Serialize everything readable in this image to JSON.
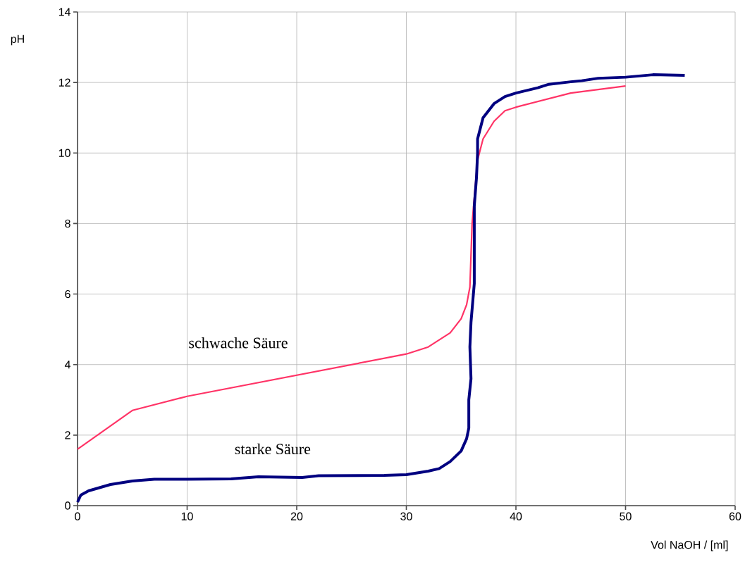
{
  "chart_data": {
    "type": "line",
    "xlabel": "Vol NaOH / [ml]",
    "ylabel": "pH",
    "xlim": [
      0,
      60
    ],
    "xticks": [
      0,
      10,
      20,
      30,
      40,
      50,
      60
    ],
    "ylim": [
      0,
      14
    ],
    "yticks": [
      0,
      2,
      4,
      6,
      8,
      10,
      12,
      14
    ],
    "grid": true,
    "marker": "none",
    "line_style": "solid",
    "series": [
      {
        "name": "schwache Säure",
        "color": "#ff3366",
        "x": [
          0,
          5,
          10,
          30,
          32,
          34,
          35,
          35.5,
          35.8,
          36,
          36.5,
          37,
          38,
          39,
          40,
          45,
          50
        ],
        "values": [
          1.6,
          2.7,
          3.1,
          4.3,
          4.5,
          4.9,
          5.3,
          5.7,
          6.2,
          8,
          9.8,
          10.4,
          10.9,
          11.2,
          11.3,
          11.7,
          11.9
        ]
      },
      {
        "name": "starke Säure",
        "color": "#000080",
        "x": [
          0,
          0.3,
          1,
          3,
          5,
          7,
          10,
          14,
          16.5,
          20.5,
          22,
          28,
          30,
          32,
          33,
          34,
          35,
          35.5,
          35.7,
          35.7,
          35.9,
          35.8,
          35.9,
          36.2,
          36.2,
          36.4,
          36.5,
          36.5,
          37,
          38,
          39,
          40,
          42,
          43,
          45,
          46,
          47.5,
          50,
          52.5,
          55.4
        ],
        "values": [
          0.1,
          0.3,
          0.42,
          0.6,
          0.7,
          0.75,
          0.75,
          0.76,
          0.82,
          0.8,
          0.85,
          0.86,
          0.88,
          0.98,
          1.05,
          1.25,
          1.55,
          1.9,
          2.2,
          3,
          3.6,
          4.5,
          5.2,
          6.3,
          8.5,
          9.3,
          10,
          10.4,
          11,
          11.4,
          11.6,
          11.7,
          11.85,
          11.95,
          12.02,
          12.05,
          12.12,
          12.15,
          12.22,
          12.2
        ]
      }
    ]
  }
}
